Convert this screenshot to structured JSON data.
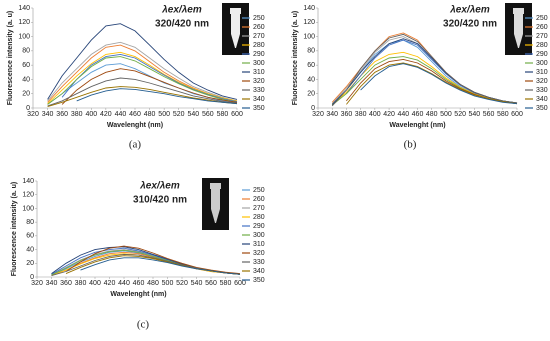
{
  "chart_data": [
    {
      "type": "line",
      "annotation": "λex/λem",
      "subtitle": "320/420 nm",
      "panel_label": "(a)",
      "x_label": "Wavelenght (nm)",
      "y_label": "Fluorescence intensity (a. u)",
      "x": [
        320,
        340,
        360,
        380,
        400,
        420,
        440,
        460,
        480,
        500,
        520,
        540,
        560,
        580,
        600
      ],
      "xlim": [
        320,
        600
      ],
      "xticks": [
        320,
        340,
        360,
        380,
        400,
        420,
        440,
        460,
        480,
        500,
        520,
        540,
        560,
        580,
        600
      ],
      "ylim": [
        0,
        140
      ],
      "yticks": [
        0,
        20,
        40,
        60,
        80,
        100,
        120,
        140
      ],
      "series": [
        {
          "name": "250",
          "color": "#5b9bd5",
          "values": [
            null,
            5,
            20,
            35,
            50,
            60,
            62,
            55,
            45,
            35,
            28,
            20,
            15,
            10,
            7
          ]
        },
        {
          "name": "260",
          "color": "#ed7d31",
          "values": [
            null,
            8,
            30,
            50,
            70,
            85,
            88,
            80,
            65,
            50,
            38,
            28,
            20,
            14,
            10
          ]
        },
        {
          "name": "270",
          "color": "#a5a5a5",
          "values": [
            null,
            10,
            35,
            55,
            75,
            88,
            92,
            85,
            70,
            55,
            42,
            30,
            22,
            15,
            10
          ]
        },
        {
          "name": "280",
          "color": "#ffc000",
          "values": [
            null,
            6,
            25,
            45,
            62,
            75,
            78,
            72,
            60,
            47,
            36,
            27,
            20,
            14,
            10
          ]
        },
        {
          "name": "290",
          "color": "#4472c4",
          "values": [
            null,
            null,
            15,
            40,
            60,
            72,
            75,
            70,
            58,
            46,
            35,
            26,
            19,
            13,
            9
          ]
        },
        {
          "name": "300",
          "color": "#70ad47",
          "values": [
            null,
            5,
            20,
            40,
            58,
            70,
            72,
            66,
            55,
            44,
            34,
            25,
            18,
            12,
            8
          ]
        },
        {
          "name": "310",
          "color": "#264478",
          "values": [
            null,
            12,
            45,
            70,
            95,
            115,
            118,
            108,
            88,
            68,
            50,
            35,
            25,
            17,
            12
          ]
        },
        {
          "name": "320",
          "color": "#9e480e",
          "values": [
            null,
            null,
            5,
            25,
            40,
            50,
            55,
            52,
            44,
            36,
            28,
            21,
            15,
            11,
            8
          ]
        },
        {
          "name": "330",
          "color": "#636363",
          "values": [
            null,
            3,
            10,
            20,
            30,
            38,
            42,
            40,
            35,
            29,
            23,
            17,
            13,
            9,
            7
          ]
        },
        {
          "name": "340",
          "color": "#997300",
          "values": [
            null,
            2,
            8,
            15,
            22,
            28,
            30,
            29,
            26,
            22,
            18,
            14,
            11,
            8,
            6
          ]
        },
        {
          "name": "350",
          "color": "#255e91",
          "values": [
            null,
            null,
            null,
            10,
            18,
            24,
            27,
            26,
            23,
            20,
            16,
            13,
            10,
            8,
            6
          ]
        }
      ]
    },
    {
      "type": "line",
      "annotation": "λex/λem",
      "subtitle": "320/420 nm",
      "panel_label": "(b)",
      "x_label": "Wavelenght (nm)",
      "y_label": "Fluorescence intensity (a. u)",
      "x": [
        320,
        340,
        360,
        380,
        400,
        420,
        440,
        460,
        480,
        500,
        520,
        540,
        560,
        580,
        600
      ],
      "xlim": [
        320,
        600
      ],
      "xticks": [
        320,
        340,
        360,
        380,
        400,
        420,
        440,
        460,
        480,
        500,
        520,
        540,
        560,
        580,
        600
      ],
      "ylim": [
        0,
        140
      ],
      "yticks": [
        0,
        20,
        40,
        60,
        80,
        100,
        120,
        140
      ],
      "series": [
        {
          "name": "250",
          "color": "#5b9bd5",
          "values": [
            null,
            5,
            25,
            50,
            75,
            90,
            95,
            85,
            65,
            45,
            30,
            20,
            14,
            10,
            7
          ]
        },
        {
          "name": "260",
          "color": "#ed7d31",
          "values": [
            null,
            8,
            30,
            55,
            80,
            100,
            105,
            95,
            72,
            50,
            33,
            22,
            15,
            10,
            7
          ]
        },
        {
          "name": "270",
          "color": "#a5a5a5",
          "values": [
            null,
            6,
            28,
            52,
            78,
            95,
            100,
            90,
            70,
            48,
            32,
            21,
            14,
            10,
            7
          ]
        },
        {
          "name": "280",
          "color": "#ffc000",
          "values": [
            null,
            5,
            22,
            45,
            65,
            75,
            78,
            72,
            58,
            42,
            29,
            20,
            14,
            10,
            7
          ]
        },
        {
          "name": "290",
          "color": "#4472c4",
          "values": [
            null,
            null,
            20,
            45,
            70,
            88,
            95,
            88,
            68,
            48,
            32,
            21,
            15,
            10,
            7
          ]
        },
        {
          "name": "300",
          "color": "#70ad47",
          "values": [
            null,
            4,
            20,
            40,
            60,
            70,
            72,
            67,
            55,
            40,
            28,
            19,
            13,
            9,
            6
          ]
        },
        {
          "name": "310",
          "color": "#264478",
          "values": [
            null,
            5,
            25,
            50,
            72,
            90,
            97,
            90,
            70,
            49,
            33,
            22,
            15,
            10,
            7
          ]
        },
        {
          "name": "320",
          "color": "#9e480e",
          "values": [
            null,
            null,
            10,
            35,
            55,
            65,
            68,
            63,
            52,
            38,
            27,
            19,
            13,
            9,
            6
          ]
        },
        {
          "name": "330",
          "color": "#636363",
          "values": [
            null,
            3,
            25,
            55,
            80,
            98,
            103,
            93,
            72,
            50,
            33,
            22,
            15,
            10,
            7
          ]
        },
        {
          "name": "340",
          "color": "#997300",
          "values": [
            null,
            null,
            5,
            30,
            50,
            60,
            63,
            58,
            48,
            36,
            26,
            18,
            13,
            9,
            6
          ]
        },
        {
          "name": "350",
          "color": "#255e91",
          "values": [
            null,
            null,
            null,
            25,
            45,
            58,
            62,
            57,
            47,
            35,
            25,
            17,
            12,
            8,
            6
          ]
        }
      ]
    },
    {
      "type": "line",
      "annotation": "λex/λem",
      "subtitle": "310/420 nm",
      "panel_label": "(c)",
      "x_label": "Wavelenght (nm)",
      "y_label": "Fluorescence intensity (a. u)",
      "x": [
        320,
        340,
        360,
        380,
        400,
        420,
        440,
        460,
        480,
        500,
        520,
        540,
        560,
        580,
        600
      ],
      "xlim": [
        320,
        600
      ],
      "xticks": [
        320,
        340,
        360,
        380,
        400,
        420,
        440,
        460,
        480,
        500,
        520,
        540,
        560,
        580,
        600
      ],
      "ylim": [
        0,
        140
      ],
      "yticks": [
        0,
        20,
        40,
        60,
        80,
        100,
        120,
        140
      ],
      "series": [
        {
          "name": "250",
          "color": "#5b9bd5",
          "values": [
            null,
            3,
            12,
            22,
            30,
            36,
            38,
            35,
            30,
            24,
            18,
            13,
            9,
            6,
            4
          ]
        },
        {
          "name": "260",
          "color": "#ed7d31",
          "values": [
            null,
            2,
            10,
            20,
            28,
            34,
            36,
            34,
            29,
            23,
            17,
            12,
            8,
            6,
            4
          ]
        },
        {
          "name": "270",
          "color": "#a5a5a5",
          "values": [
            null,
            3,
            14,
            25,
            33,
            38,
            40,
            37,
            31,
            25,
            19,
            13,
            9,
            6,
            4
          ]
        },
        {
          "name": "280",
          "color": "#ffc000",
          "values": [
            null,
            2,
            10,
            19,
            27,
            32,
            34,
            32,
            27,
            22,
            17,
            12,
            8,
            6,
            4
          ]
        },
        {
          "name": "290",
          "color": "#4472c4",
          "values": [
            null,
            4,
            16,
            28,
            36,
            40,
            42,
            38,
            32,
            25,
            19,
            13,
            9,
            6,
            4
          ]
        },
        {
          "name": "300",
          "color": "#70ad47",
          "values": [
            null,
            3,
            13,
            24,
            32,
            37,
            39,
            36,
            30,
            24,
            18,
            13,
            9,
            6,
            4
          ]
        },
        {
          "name": "310",
          "color": "#264478",
          "values": [
            null,
            5,
            20,
            32,
            40,
            43,
            44,
            40,
            33,
            26,
            19,
            13,
            9,
            6,
            4
          ]
        },
        {
          "name": "320",
          "color": "#9e480e",
          "values": [
            null,
            null,
            8,
            22,
            34,
            42,
            45,
            42,
            35,
            27,
            20,
            14,
            10,
            7,
            5
          ]
        },
        {
          "name": "330",
          "color": "#636363",
          "values": [
            null,
            2,
            8,
            16,
            24,
            30,
            33,
            32,
            28,
            23,
            18,
            13,
            9,
            6,
            4
          ]
        },
        {
          "name": "340",
          "color": "#997300",
          "values": [
            null,
            null,
            5,
            14,
            22,
            28,
            31,
            30,
            27,
            22,
            17,
            12,
            9,
            6,
            4
          ]
        },
        {
          "name": "350",
          "color": "#255e91",
          "values": [
            null,
            null,
            null,
            10,
            18,
            25,
            28,
            28,
            25,
            21,
            16,
            12,
            9,
            6,
            4
          ]
        }
      ]
    }
  ]
}
